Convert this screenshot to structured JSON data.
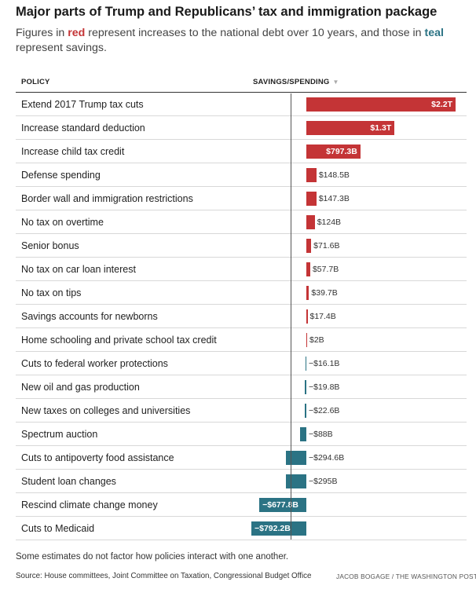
{
  "header": {
    "title": "Major parts of Trump and Republicans’ tax and immigration package",
    "subtitle_part1": "Figures in ",
    "subtitle_red": "red",
    "subtitle_part2": " represent increases to the national debt over 10 years, and those in ",
    "subtitle_teal": "teal",
    "subtitle_part3": " represent savings."
  },
  "table": {
    "col_policy": "POLICY",
    "col_savings": "SAVINGS/SPENDING"
  },
  "colors": {
    "red": "#c43436",
    "teal": "#2b7384"
  },
  "chart_data": {
    "type": "bar",
    "orientation": "horizontal",
    "unit": "billions of dollars over 10 years",
    "categories": [
      "Extend 2017 Trump tax cuts",
      "Increase standard deduction",
      "Increase child tax credit",
      "Defense spending",
      "Border wall and immigration restrictions",
      "No tax on overtime",
      "Senior bonus",
      "No tax on car loan interest",
      "No tax on tips",
      "Savings accounts for newborns",
      "Home schooling and private school tax credit",
      "Cuts to federal worker protections",
      "New oil and gas production",
      "New taxes on colleges and universities",
      "Spectrum auction",
      "Cuts to antipoverty food assistance",
      "Student loan changes",
      "Rescind climate change money",
      "Cuts to Medicaid"
    ],
    "values": [
      2200,
      1300,
      797.3,
      148.5,
      147.3,
      124,
      71.6,
      57.7,
      39.7,
      17.4,
      2,
      -16.1,
      -19.8,
      -22.6,
      -88,
      -294.6,
      -295,
      -677.8,
      -792.2
    ],
    "labels": [
      "$2.2T",
      "$1.3T",
      "$797.3B",
      "$148.5B",
      "$147.3B",
      "$124B",
      "$71.6B",
      "$57.7B",
      "$39.7B",
      "$17.4B",
      "$2B",
      "−$16.1B",
      "−$19.8B",
      "−$22.6B",
      "−$88B",
      "−$294.6B",
      "−$295B",
      "−$677.8B",
      "−$792.2B"
    ],
    "labels_inside_bar": [
      true,
      true,
      true,
      false,
      false,
      false,
      false,
      false,
      false,
      false,
      false,
      false,
      false,
      false,
      false,
      false,
      false,
      true,
      true
    ],
    "xlim": [
      -800,
      2200
    ],
    "positive_color_meaning": "red = increases to the national debt",
    "negative_color_meaning": "teal = savings"
  },
  "footer": {
    "note": "Some estimates do not factor how policies interact with one another.",
    "source": "Source: House committees, Joint Committee on Taxation, Congressional Budget Office",
    "credit": "JACOB BOGAGE / THE WASHINGTON POST"
  }
}
